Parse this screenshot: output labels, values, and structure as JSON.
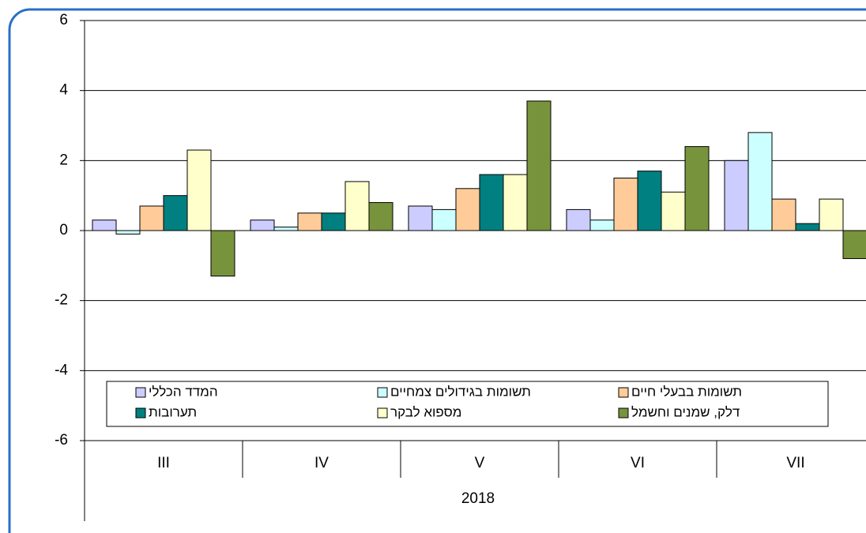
{
  "chart_data": {
    "type": "bar",
    "categories": [
      "III",
      "IV",
      "V",
      "VI",
      "VII"
    ],
    "x_group_label": "2018",
    "series": [
      {
        "name": "המדד הכללי",
        "color": "#ccccff",
        "values": [
          0.3,
          0.3,
          0.7,
          0.6,
          2.0
        ]
      },
      {
        "name": "תשומות בגידולים צמחיים",
        "color": "#ccffff",
        "values": [
          -0.1,
          0.1,
          0.6,
          0.3,
          2.8
        ]
      },
      {
        "name": "תשומות בבעלי חיים",
        "color": "#ffcc99",
        "values": [
          0.7,
          0.5,
          1.2,
          1.5,
          0.9
        ]
      },
      {
        "name": "תערובות",
        "color": "#008080",
        "values": [
          1.0,
          0.5,
          1.6,
          1.7,
          0.2
        ]
      },
      {
        "name": "מספוא לבקר",
        "color": "#ffffcc",
        "values": [
          2.3,
          1.4,
          1.6,
          1.1,
          0.9
        ]
      },
      {
        "name": "דלק, שמנים וחשמל",
        "color": "#77933c",
        "values": [
          -1.3,
          0.8,
          3.7,
          2.4,
          -0.8
        ]
      }
    ],
    "ylim": [
      -6,
      6
    ],
    "yticks": [
      -6,
      -4,
      -2,
      0,
      2,
      4,
      6
    ],
    "grid": true,
    "legend": "bottom"
  }
}
